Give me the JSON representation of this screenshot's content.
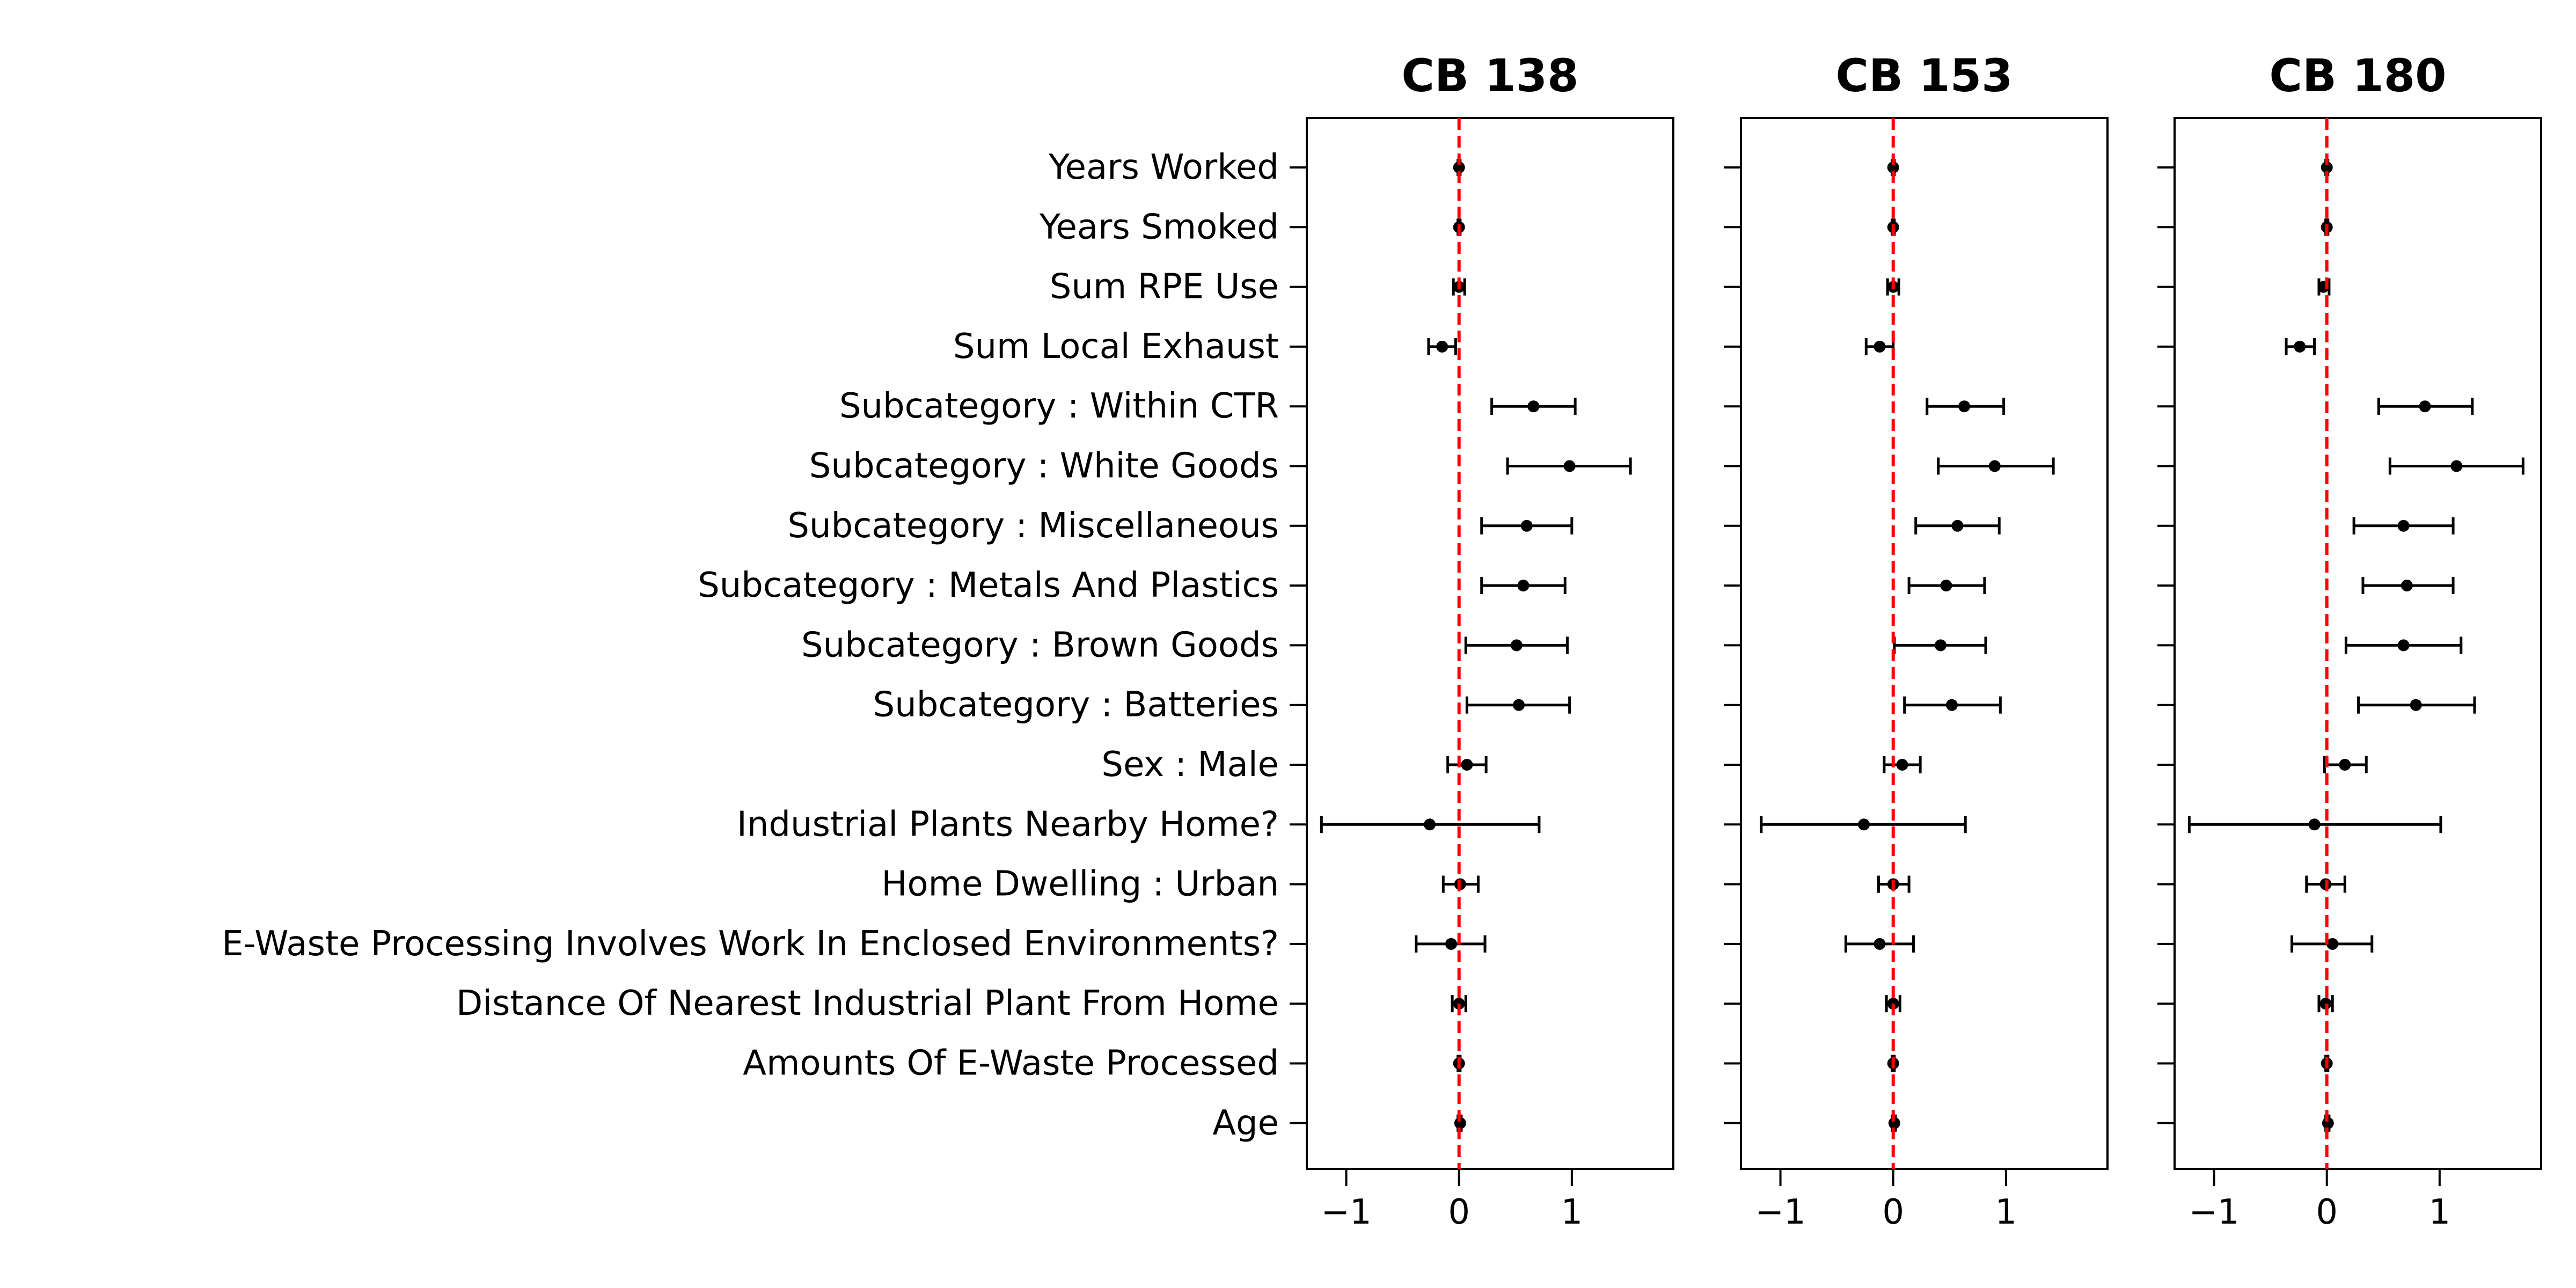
{
  "chart_data": [
    {
      "type": "scatter",
      "title": "CB 138",
      "xlabel": "",
      "ylabel": "",
      "xlim": [
        -1.35,
        1.9
      ],
      "xticks": [
        -1,
        0,
        1
      ],
      "xtick_labels": [
        "−1",
        "0",
        "1"
      ],
      "reference_line": {
        "x": 0,
        "color": "#ff0000",
        "style": "dashed"
      },
      "grid": false,
      "legend": "none",
      "categories": [
        "Years Worked",
        "Years Smoked",
        "Sum RPE Use",
        "Sum Local Exhaust",
        "Subcategory : Within CTR",
        "Subcategory : White Goods",
        "Subcategory : Miscellaneous",
        "Subcategory : Metals And Plastics",
        "Subcategory : Brown Goods",
        "Subcategory : Batteries",
        "Sex : Male",
        "Industrial Plants Nearby Home?",
        "Home Dwelling : Urban",
        "E-Waste Processing Involves Work In Enclosed Environments?",
        "Distance Of Nearest Industrial Plant From Home",
        "Amounts Of E-Waste Processed",
        "Age"
      ],
      "estimate": [
        0.0,
        0.0,
        0.0,
        -0.15,
        0.66,
        0.98,
        0.6,
        0.57,
        0.51,
        0.53,
        0.07,
        -0.26,
        0.01,
        -0.07,
        0.0,
        0.0,
        0.01
      ],
      "ci_low": [
        -0.01,
        -0.01,
        -0.05,
        -0.27,
        0.29,
        0.43,
        0.2,
        0.2,
        0.06,
        0.07,
        -0.1,
        -1.22,
        -0.14,
        -0.38,
        -0.06,
        -0.01,
        -0.01
      ],
      "ci_high": [
        0.01,
        0.01,
        0.05,
        -0.03,
        1.03,
        1.52,
        1.0,
        0.94,
        0.96,
        0.98,
        0.24,
        0.71,
        0.17,
        0.23,
        0.06,
        0.01,
        0.02
      ]
    },
    {
      "type": "scatter",
      "title": "CB 153",
      "xlabel": "",
      "ylabel": "",
      "xlim": [
        -1.35,
        1.9
      ],
      "xticks": [
        -1,
        0,
        1
      ],
      "xtick_labels": [
        "−1",
        "0",
        "1"
      ],
      "reference_line": {
        "x": 0,
        "color": "#ff0000",
        "style": "dashed"
      },
      "grid": false,
      "legend": "none",
      "categories": [
        "Years Worked",
        "Years Smoked",
        "Sum RPE Use",
        "Sum Local Exhaust",
        "Subcategory : Within CTR",
        "Subcategory : White Goods",
        "Subcategory : Miscellaneous",
        "Subcategory : Metals And Plastics",
        "Subcategory : Brown Goods",
        "Subcategory : Batteries",
        "Sex : Male",
        "Industrial Plants Nearby Home?",
        "Home Dwelling : Urban",
        "E-Waste Processing Involves Work In Enclosed Environments?",
        "Distance Of Nearest Industrial Plant From Home",
        "Amounts Of E-Waste Processed",
        "Age"
      ],
      "estimate": [
        0.0,
        0.0,
        0.0,
        -0.12,
        0.63,
        0.9,
        0.57,
        0.47,
        0.42,
        0.52,
        0.08,
        -0.26,
        0.0,
        -0.12,
        0.0,
        0.0,
        0.01
      ],
      "ci_low": [
        -0.01,
        -0.01,
        -0.05,
        -0.24,
        0.3,
        0.4,
        0.2,
        0.14,
        0.01,
        0.1,
        -0.08,
        -1.17,
        -0.13,
        -0.42,
        -0.06,
        -0.01,
        -0.01
      ],
      "ci_high": [
        0.01,
        0.01,
        0.05,
        0.0,
        0.98,
        1.42,
        0.94,
        0.81,
        0.82,
        0.95,
        0.24,
        0.64,
        0.14,
        0.18,
        0.06,
        0.01,
        0.02
      ]
    },
    {
      "type": "scatter",
      "title": "CB 180",
      "xlabel": "",
      "ylabel": "",
      "xlim": [
        -1.35,
        1.9
      ],
      "xticks": [
        -1,
        0,
        1
      ],
      "xtick_labels": [
        "−1",
        "0",
        "1"
      ],
      "reference_line": {
        "x": 0,
        "color": "#ff0000",
        "style": "dashed"
      },
      "grid": false,
      "legend": "none",
      "categories": [
        "Years Worked",
        "Years Smoked",
        "Sum RPE Use",
        "Sum Local Exhaust",
        "Subcategory : Within CTR",
        "Subcategory : White Goods",
        "Subcategory : Miscellaneous",
        "Subcategory : Metals And Plastics",
        "Subcategory : Brown Goods",
        "Subcategory : Batteries",
        "Sex : Male",
        "Industrial Plants Nearby Home?",
        "Home Dwelling : Urban",
        "E-Waste Processing Involves Work In Enclosed Environments?",
        "Distance Of Nearest Industrial Plant From Home",
        "Amounts Of E-Waste Processed",
        "Age"
      ],
      "estimate": [
        0.0,
        0.0,
        -0.03,
        -0.24,
        0.87,
        1.15,
        0.68,
        0.71,
        0.68,
        0.79,
        0.16,
        -0.11,
        -0.01,
        0.05,
        -0.01,
        0.0,
        0.01
      ],
      "ci_low": [
        -0.01,
        -0.01,
        -0.07,
        -0.36,
        0.46,
        0.56,
        0.24,
        0.32,
        0.17,
        0.28,
        -0.02,
        -1.22,
        -0.18,
        -0.31,
        -0.07,
        -0.01,
        -0.01
      ],
      "ci_high": [
        0.01,
        0.01,
        0.02,
        -0.11,
        1.29,
        1.74,
        1.12,
        1.12,
        1.19,
        1.31,
        0.35,
        1.01,
        0.16,
        0.4,
        0.05,
        0.01,
        0.02
      ]
    }
  ]
}
